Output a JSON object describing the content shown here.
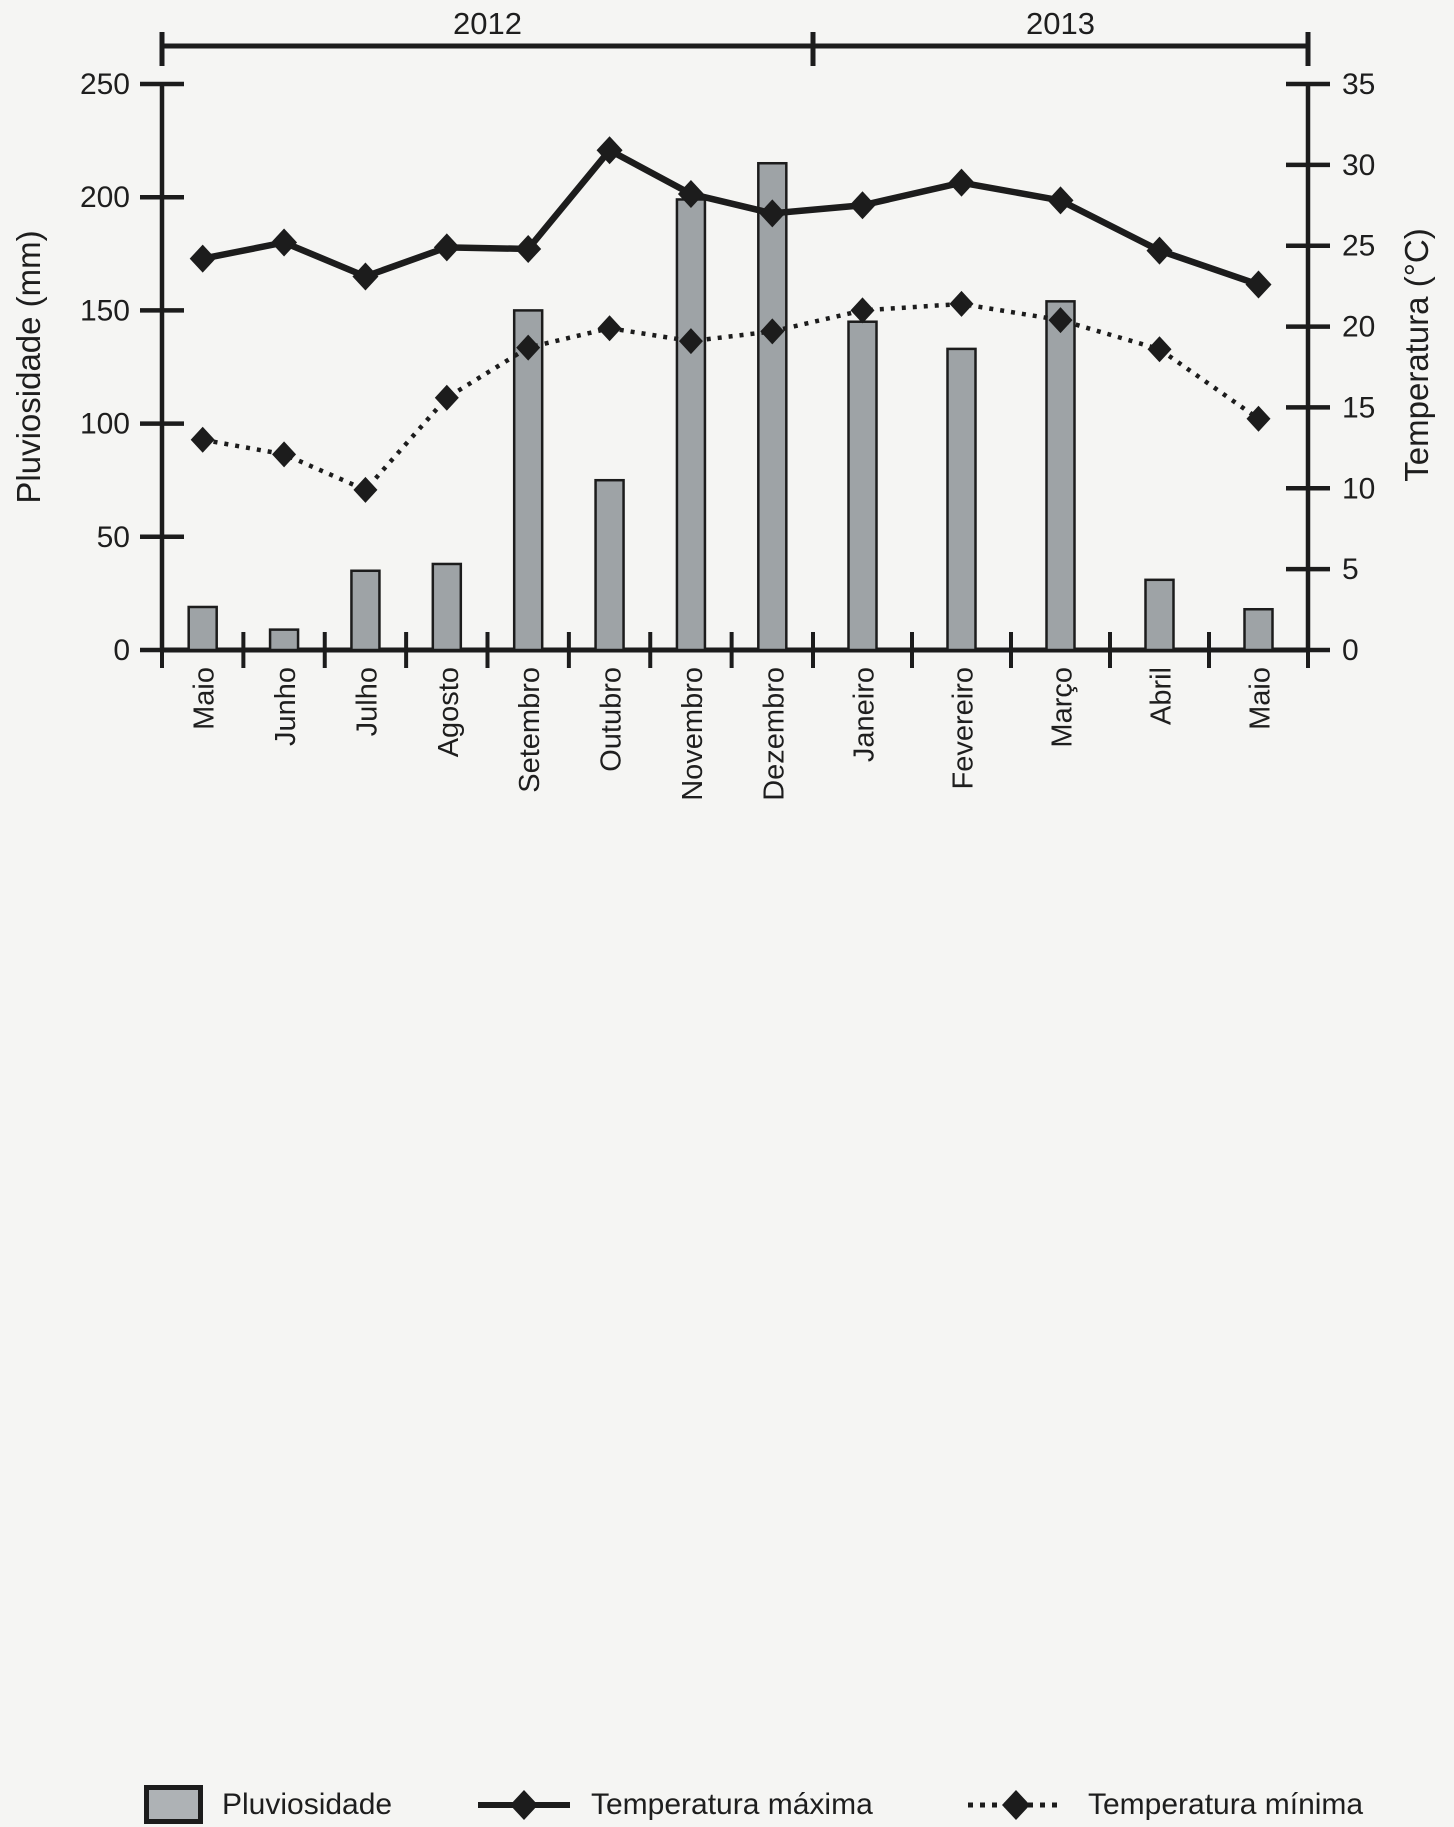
{
  "colors": {
    "background": "#f5f5f3",
    "ink": "#1c1c1c",
    "bar_fill": "#9ea3a6",
    "text": "#1e1e1e"
  },
  "legend": {
    "items": [
      {
        "label": "Pluviosidade",
        "swatch": "bar-swatch"
      },
      {
        "label": "Temperatura máxima",
        "swatch": "solid-line-swatch"
      },
      {
        "label": "Temperatura mínima",
        "swatch": "dotted-line-swatch"
      }
    ]
  },
  "chart_data": {
    "type": "bar+line",
    "categories": [
      "Maio",
      "Junho",
      "Julho",
      "Agosto",
      "Setembro",
      "Outubro",
      "Novembro",
      "Dezembro",
      "Janeiro",
      "Fevereiro",
      "Março",
      "Abril",
      "Maio"
    ],
    "year_groups": [
      {
        "label": "2012",
        "months": 8
      },
      {
        "label": "2013",
        "months": 5
      }
    ],
    "series": [
      {
        "name": "Pluviosidade",
        "type": "bar",
        "axis": "left",
        "unit": "mm",
        "values": [
          19,
          9,
          35,
          38,
          150,
          75,
          199,
          215,
          145,
          133,
          154,
          31,
          18
        ]
      },
      {
        "name": "Temperatura máxima",
        "type": "line",
        "style": "solid",
        "axis": "right",
        "unit": "°C",
        "values": [
          24.2,
          25.2,
          23.1,
          24.9,
          24.8,
          30.9,
          28.2,
          27.0,
          27.5,
          28.9,
          27.8,
          24.7,
          22.6
        ]
      },
      {
        "name": "Temperatura mínima",
        "type": "line",
        "style": "dotted",
        "axis": "right",
        "unit": "°C",
        "values": [
          13.0,
          12.1,
          9.9,
          15.6,
          18.7,
          19.9,
          19.1,
          19.7,
          21.0,
          21.4,
          20.4,
          18.6,
          14.3
        ]
      }
    ],
    "left_axis": {
      "label": "Pluviosidade (mm)",
      "min": 0,
      "max": 250,
      "tick_step": 50,
      "ticks": [
        0,
        50,
        100,
        150,
        200,
        250
      ]
    },
    "right_axis": {
      "label": "Temperatura (°C)",
      "min": 0,
      "max": 35,
      "tick_step": 5,
      "ticks": [
        0,
        5,
        10,
        15,
        20,
        25,
        30,
        35
      ]
    },
    "grid": false,
    "legend_position": "bottom"
  }
}
